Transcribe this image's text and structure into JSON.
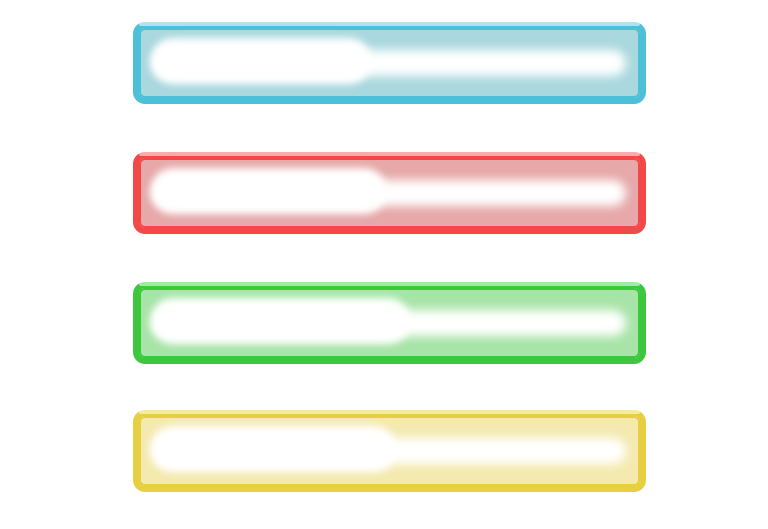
{
  "bars": [
    {
      "id": "blue",
      "color": "#4cc0d8",
      "inner": "#a9d8de",
      "progress": 0.45
    },
    {
      "id": "red",
      "color": "#f24848",
      "inner": "#e6a8a8",
      "progress": 0.48
    },
    {
      "id": "green",
      "color": "#3cc83c",
      "inner": "#a8e4a8",
      "progress": 0.53
    },
    {
      "id": "yellow",
      "color": "#e6cf40",
      "inner": "#f4eab0",
      "progress": 0.5
    }
  ]
}
